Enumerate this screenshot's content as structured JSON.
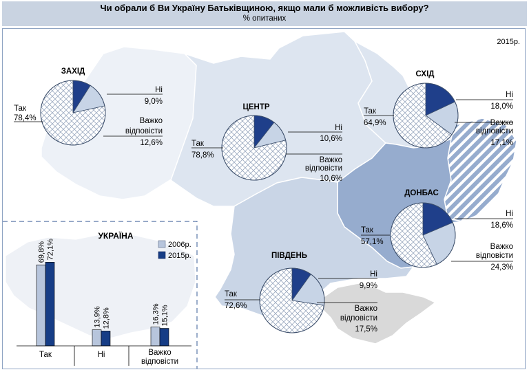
{
  "title": "Чи обрали б Ви Україну Батьківщиною, якщо мали б можливість вибору?",
  "subtitle": "% опитаних",
  "year_label": "2015р.",
  "chart_data": [
    {
      "type": "pie",
      "title": "",
      "regions": [
        {
          "name": "ЗАХІД",
          "values": {
            "Так": 78.4,
            "Ні": 9.0,
            "Важко відповісти": 12.6
          }
        },
        {
          "name": "ЦЕНТР",
          "values": {
            "Так": 78.8,
            "Ні": 10.6,
            "Важко відповісти": 10.6
          }
        },
        {
          "name": "СХІД",
          "values": {
            "Так": 64.9,
            "Ні": 18.0,
            "Важко відповісти": 17.1
          }
        },
        {
          "name": "ДОНБАС",
          "values": {
            "Так": 57.1,
            "Ні": 18.6,
            "Важко відповісти": 24.3
          }
        },
        {
          "name": "ПІВДЕНЬ",
          "values": {
            "Так": 72.6,
            "Ні": 9.9,
            "Важко відповісти": 17.5
          }
        }
      ],
      "labels": {
        "yes": "Так",
        "no": "Ні",
        "hard_line1": "Важко",
        "hard_line2": "відповісти"
      },
      "value_labels": {
        "west": {
          "yes": "78,4%",
          "no": "9,0%",
          "hard": "12,6%"
        },
        "center": {
          "yes": "78,8%",
          "no": "10,6%",
          "hard": "10,6%"
        },
        "east": {
          "yes": "64,9%",
          "no": "18,0%",
          "hard": "17,1%"
        },
        "donbas": {
          "yes": "57,1%",
          "no": "18,6%",
          "hard": "24,3%"
        },
        "south": {
          "yes": "72,6%",
          "no": "9,9%",
          "hard": "17,5%"
        }
      },
      "colors": {
        "yes": "#ffffff",
        "no": "#1f3f8a",
        "hard": "#c7d4e6",
        "hatch": "#9aa9bf"
      }
    },
    {
      "type": "bar",
      "title": "УКРАЇНА",
      "categories": [
        "Так",
        "Ні",
        "Важко відповісти"
      ],
      "category_display": [
        [
          "Так"
        ],
        [
          "Ні"
        ],
        [
          "Важко",
          "відповісти"
        ]
      ],
      "series": [
        {
          "name": "2006р.",
          "values": [
            69.8,
            13.9,
            16.3
          ],
          "labels": [
            "69,8%",
            "13,9%",
            "16,3%"
          ],
          "color": "#b7c5dc"
        },
        {
          "name": "2015р.",
          "values": [
            72.1,
            12.8,
            15.1
          ],
          "labels": [
            "72,1%",
            "12,8%",
            "15,1%"
          ],
          "color": "#163d86"
        }
      ],
      "ylim": [
        0,
        80
      ],
      "legend": "top-right"
    }
  ],
  "map_colors": {
    "west": "#edf1f7",
    "center": "#dde5f0",
    "east": "#dde5f0",
    "south": "#c9d5e6",
    "donbas": "#96acce",
    "crimea": "#d9d9d9",
    "border": "#ffffff"
  }
}
